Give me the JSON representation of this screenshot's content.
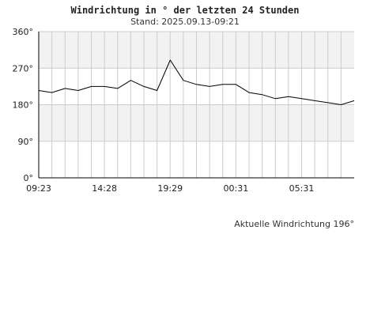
{
  "chart_data": {
    "type": "line",
    "title": "Windrichtung in ° der letzten 24 Stunden",
    "subtitle": "Stand: 2025.09.13-09:21",
    "xlabel": "",
    "ylabel": "",
    "ylim": [
      0,
      360
    ],
    "y_ticks": [
      "0°",
      "90°",
      "180°",
      "270°",
      "360°"
    ],
    "x_ticks": [
      "09:23",
      "14:28",
      "19:29",
      "00:31",
      "05:31"
    ],
    "x": [
      "09:23",
      "10:23",
      "11:23",
      "12:23",
      "13:23",
      "14:23",
      "15:23",
      "16:23",
      "17:23",
      "18:23",
      "19:23",
      "20:23",
      "21:23",
      "22:23",
      "23:23",
      "00:23",
      "01:23",
      "02:23",
      "03:23",
      "04:23",
      "05:23",
      "06:23",
      "07:23",
      "08:23",
      "09:21"
    ],
    "series": [
      {
        "values": [
          215,
          210,
          220,
          215,
          225,
          225,
          220,
          240,
          225,
          215,
          290,
          240,
          230,
          225,
          230,
          230,
          210,
          205,
          195,
          200,
          195,
          190,
          185,
          180,
          190
        ]
      }
    ],
    "grid": true,
    "legend": "none",
    "line_color": "#000000",
    "band_color": "#f2f2f2",
    "grid_color": "#cccccc"
  },
  "footer": {
    "current_direction": "Aktuelle Windrichtung 196°"
  }
}
